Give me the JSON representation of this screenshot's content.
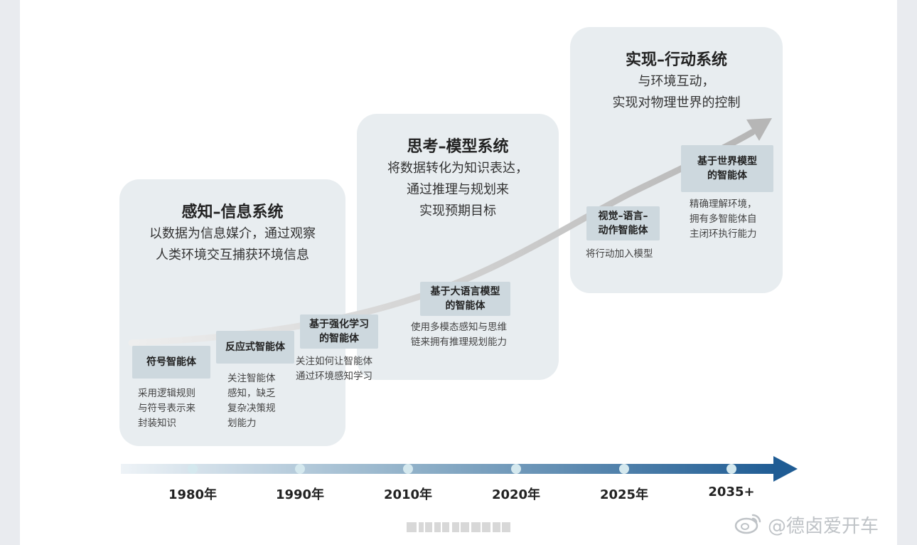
{
  "panels": [
    {
      "title": "感知–信息系统",
      "desc": "以数据为信息媒介，通过观察\n人类环境交互捕获环境信息"
    },
    {
      "title": "思考–模型系统",
      "desc": "将数据转化为知识表达，\n通过推理与规划来\n实现预期目标"
    },
    {
      "title": "实现–行动系统",
      "desc": "与环境互动，\n实现对物理世界的控制"
    }
  ],
  "agents": [
    {
      "label": "符号智能体",
      "desc": "采用逻辑规则\n与符号表示来\n封装知识"
    },
    {
      "label": "反应式智能体",
      "desc": "关注智能体\n感知，缺乏\n复杂决策规\n划能力"
    },
    {
      "label": "基于强化学习\n的智能体",
      "desc": "关注如何让智能体\n通过环境感知学习"
    },
    {
      "label": "基于大语言模型\n的智能体",
      "desc": "使用多模态感知与思维\n链来拥有推理规划能力"
    },
    {
      "label": "视觉–语言–\n动作智能体",
      "desc": "将行动加入模型"
    },
    {
      "label": "基于世界模型\n的智能体",
      "desc": "精确理解环境，\n拥有多智能体自\n主闭环执行能力"
    }
  ],
  "timeline": {
    "years": [
      "1980年",
      "1990年",
      "2010年",
      "2020年",
      "2025年",
      "2035+"
    ],
    "colors": {
      "start": "#eef3f7",
      "end": "#1f5c94",
      "dot": "#d4e8ee"
    }
  },
  "watermark": "@德卤爱开车",
  "icons": [
    "weibo-icon",
    "arrow-icon"
  ]
}
